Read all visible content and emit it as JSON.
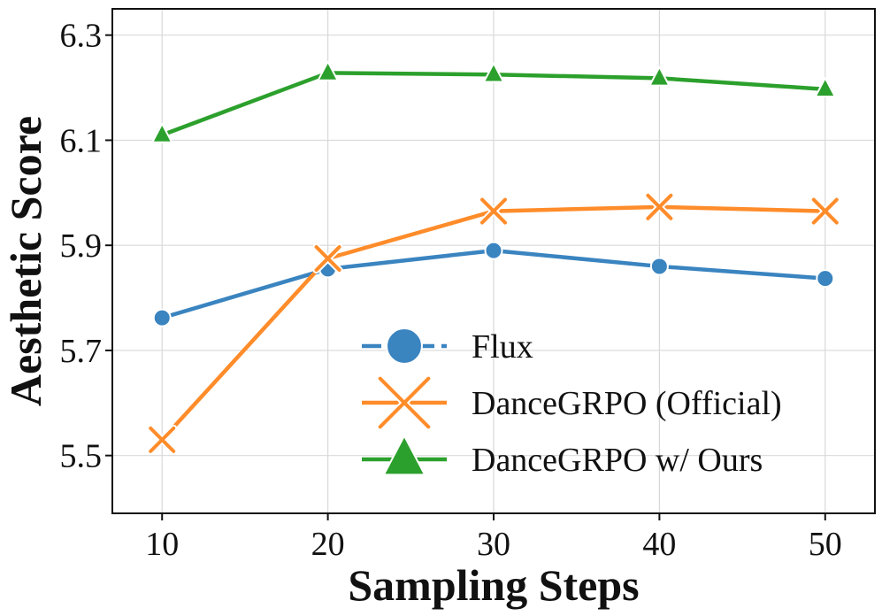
{
  "chart_data": {
    "type": "line",
    "title": "",
    "xlabel": "Sampling Steps",
    "ylabel": "Aesthetic Score",
    "x": [
      10,
      20,
      30,
      40,
      50
    ],
    "x_ticks": [
      "10",
      "20",
      "30",
      "40",
      "50"
    ],
    "y_ticks": [
      "5.5",
      "5.7",
      "5.9",
      "6.1",
      "6.3"
    ],
    "xlim": [
      7,
      53
    ],
    "ylim": [
      5.39,
      6.35
    ],
    "grid": true,
    "legend_position": "lower-right",
    "series": [
      {
        "name": "Flux",
        "values": [
          5.762,
          5.855,
          5.89,
          5.86,
          5.837
        ],
        "color": "#3a84c0",
        "marker": "circle"
      },
      {
        "name": "DanceGRPO (Official)",
        "values": [
          5.53,
          5.875,
          5.965,
          5.973,
          5.965
        ],
        "color": "#ff8c2a",
        "marker": "x"
      },
      {
        "name": "DanceGRPO w/ Ours",
        "values": [
          6.11,
          6.228,
          6.225,
          6.218,
          6.197
        ],
        "color": "#2ca02c",
        "marker": "triangle"
      }
    ]
  }
}
